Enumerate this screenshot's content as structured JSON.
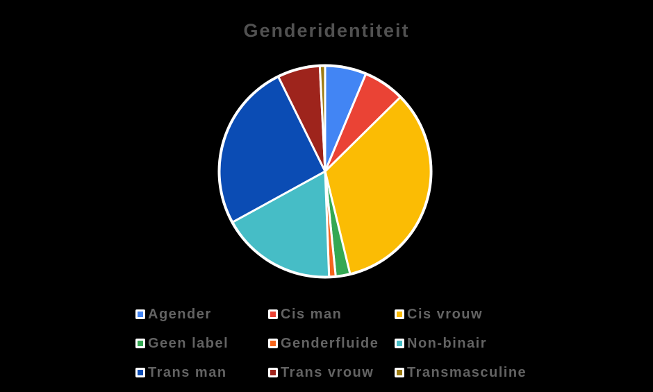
{
  "page": {
    "background_color": "#000000"
  },
  "chart_data": {
    "type": "pie",
    "title": "Genderidentiteit",
    "categories": [
      "Agender",
      "Cis man",
      "Cis vrouw",
      "Geen label",
      "Genderfluide",
      "Non-binair",
      "Trans man",
      "Trans vrouw",
      "Transmasculine"
    ],
    "values": [
      6.3,
      6.3,
      33.6,
      2.2,
      1.0,
      17.6,
      25.7,
      6.5,
      0.8
    ],
    "unit": "percent",
    "colors": [
      "#4285F4",
      "#EA4335",
      "#FBBC04",
      "#34A853",
      "#F4651C",
      "#46BDC6",
      "#0B4CB4",
      "#9E241C",
      "#9C7B10"
    ],
    "start_angle_deg": 0,
    "direction": "clockwise",
    "slice_border_color": "#FFFFFF",
    "legend_position": "bottom",
    "legend_rows": 3,
    "legend_columns": 3,
    "title_color": "#515151",
    "legend_text_color": "#636363"
  }
}
